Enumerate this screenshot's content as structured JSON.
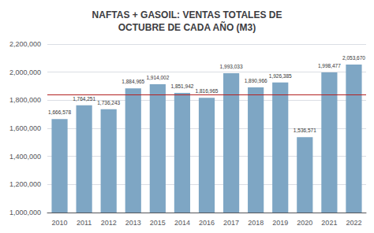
{
  "chart_data": {
    "type": "bar",
    "title": "NAFTAS + GASOIL: VENTAS TOTALES DE\nOCTUBRE DE CADA AÑO (M3)",
    "categories": [
      "2010",
      "2011",
      "2012",
      "2013",
      "2015",
      "2014",
      "2016",
      "2017",
      "2018",
      "2019",
      "2020",
      "2021",
      "2022"
    ],
    "values": [
      1666578,
      1764251,
      1736243,
      1884965,
      1914002,
      1851942,
      1816965,
      1993033,
      1890966,
      1926385,
      1536571,
      1998477,
      2053670
    ],
    "value_labels": [
      "1,666,578",
      "1,764,251",
      "1,736,243",
      "1,884,965",
      "1,914,002",
      "1,851,942",
      "1,816,965",
      "1,993,033",
      "1,890,966",
      "1,926,385",
      "1,536,571",
      "1,998,477",
      "2,053,670"
    ],
    "color": "#7EA6C4",
    "reference_line": {
      "value": 1840000,
      "color": "#B22222"
    },
    "ylim": [
      1000000,
      2200000
    ],
    "yticks": [
      {
        "value": 1000000,
        "label": "1,000,000"
      },
      {
        "value": 1200000,
        "label": "1,200,000"
      },
      {
        "value": 1400000,
        "label": "1,400,000"
      },
      {
        "value": 1600000,
        "label": "1,600,000"
      },
      {
        "value": 1800000,
        "label": "1,800,000"
      },
      {
        "value": 2000000,
        "label": "2,000,000"
      },
      {
        "value": 2200000,
        "label": "2,200,000"
      }
    ],
    "grid": true,
    "data_labels": true
  }
}
